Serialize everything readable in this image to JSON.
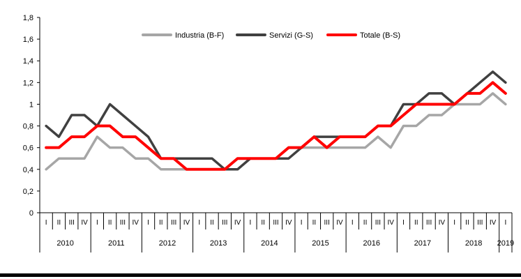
{
  "chart_data": {
    "type": "line",
    "title": "",
    "grid": false,
    "legend_position": "top",
    "decimal_separator": ",",
    "y_axis": {
      "min": 0,
      "max": 1.8,
      "step": 0.2,
      "ticks": [
        {
          "v": 1.8,
          "label": "1,8"
        },
        {
          "v": 1.6,
          "label": "1,6"
        },
        {
          "v": 1.4,
          "label": "1,4"
        },
        {
          "v": 1.2,
          "label": "1,2"
        },
        {
          "v": 1.0,
          "label": "1"
        },
        {
          "v": 0.8,
          "label": "0,8"
        },
        {
          "v": 0.6,
          "label": "0,6"
        },
        {
          "v": 0.4,
          "label": "0,4"
        },
        {
          "v": 0.2,
          "label": "0,2"
        },
        {
          "v": 0.0,
          "label": "0"
        }
      ]
    },
    "x_axis": {
      "years": [
        {
          "label": "2010",
          "quarters": [
            "I",
            "II",
            "III",
            "IV"
          ]
        },
        {
          "label": "2011",
          "quarters": [
            "I",
            "II",
            "III",
            "IV"
          ]
        },
        {
          "label": "2012",
          "quarters": [
            "I",
            "II",
            "III",
            "IV"
          ]
        },
        {
          "label": "2013",
          "quarters": [
            "I",
            "II",
            "III",
            "IV"
          ]
        },
        {
          "label": "2014",
          "quarters": [
            "I",
            "II",
            "III",
            "IV"
          ]
        },
        {
          "label": "2015",
          "quarters": [
            "I",
            "II",
            "III",
            "IV"
          ]
        },
        {
          "label": "2016",
          "quarters": [
            "I",
            "II",
            "III",
            "IV"
          ]
        },
        {
          "label": "2017",
          "quarters": [
            "I",
            "II",
            "III",
            "IV"
          ]
        },
        {
          "label": "2018",
          "quarters": [
            "I",
            "II",
            "III",
            "IV"
          ]
        },
        {
          "label": "2019",
          "quarters": [
            "I"
          ]
        }
      ]
    },
    "series": [
      {
        "name": "Industria (B-F)",
        "color": "#A6A6A6",
        "stroke_width": 3.5,
        "values": [
          0.4,
          0.5,
          0.5,
          0.5,
          0.7,
          0.6,
          0.6,
          0.5,
          0.5,
          0.4,
          0.4,
          0.4,
          0.4,
          0.4,
          0.4,
          0.4,
          0.5,
          0.5,
          0.5,
          0.6,
          0.6,
          0.6,
          0.6,
          0.6,
          0.6,
          0.6,
          0.7,
          0.6,
          0.8,
          0.8,
          0.9,
          0.9,
          1.0,
          1.0,
          1.0,
          1.1,
          1.0
        ]
      },
      {
        "name": "Servizi (G-S)",
        "color": "#404040",
        "stroke_width": 3.5,
        "values": [
          0.8,
          0.7,
          0.9,
          0.9,
          0.8,
          1.0,
          0.9,
          0.8,
          0.7,
          0.5,
          0.5,
          0.5,
          0.5,
          0.5,
          0.4,
          0.4,
          0.5,
          0.5,
          0.5,
          0.5,
          0.6,
          0.7,
          0.7,
          0.7,
          0.7,
          0.7,
          0.8,
          0.8,
          1.0,
          1.0,
          1.1,
          1.1,
          1.0,
          1.1,
          1.2,
          1.3,
          1.2
        ]
      },
      {
        "name": "Totale (B-S)",
        "color": "#FF0000",
        "stroke_width": 4,
        "values": [
          0.6,
          0.6,
          0.7,
          0.7,
          0.8,
          0.8,
          0.7,
          0.7,
          0.6,
          0.5,
          0.5,
          0.4,
          0.4,
          0.4,
          0.4,
          0.5,
          0.5,
          0.5,
          0.5,
          0.6,
          0.6,
          0.7,
          0.6,
          0.7,
          0.7,
          0.7,
          0.8,
          0.8,
          0.9,
          1.0,
          1.0,
          1.0,
          1.0,
          1.1,
          1.1,
          1.2,
          1.1
        ]
      }
    ]
  },
  "footer": {
    "bar_color": "#000000"
  }
}
